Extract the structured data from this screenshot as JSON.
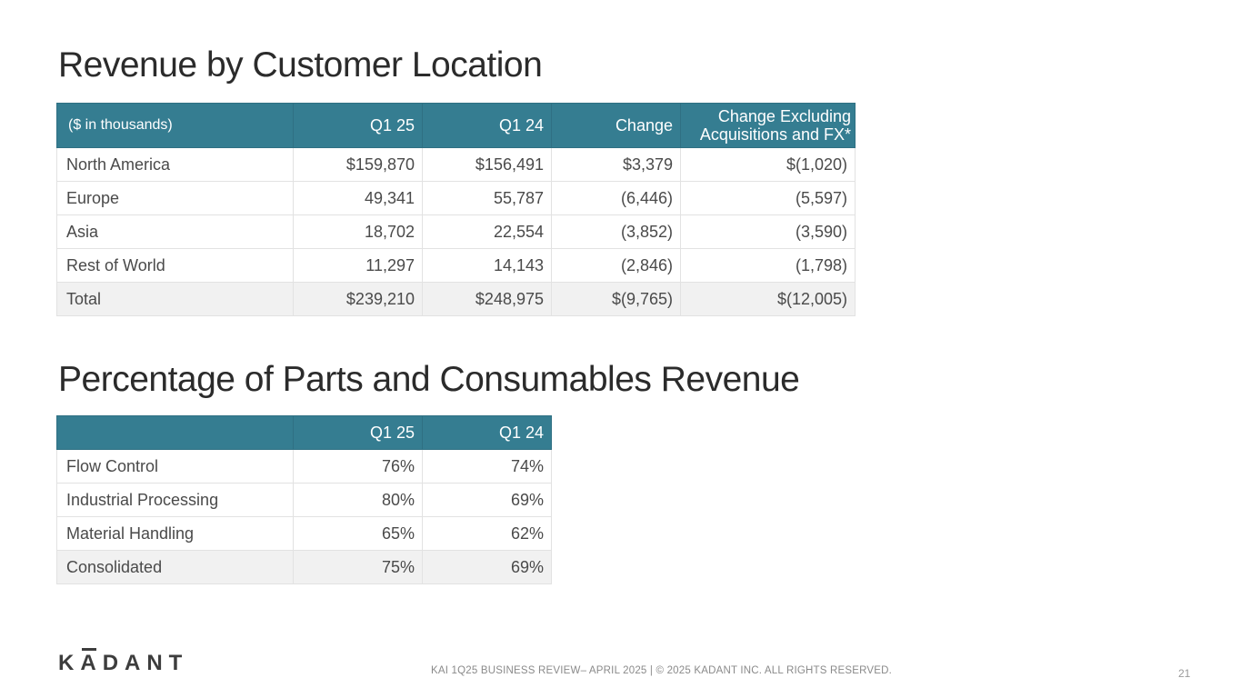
{
  "revenue": {
    "title": "Revenue by Customer Location",
    "headers": [
      "($ in thousands)",
      "Q1 25",
      "Q1 24",
      "Change",
      "Change Excluding",
      "Acquisitions and FX*"
    ],
    "rows": [
      [
        "North America",
        "$159,870",
        "$156,491",
        "$3,379",
        "$(1,020)"
      ],
      [
        "Europe",
        "49,341",
        "55,787",
        "(6,446)",
        "(5,597)"
      ],
      [
        "Asia",
        "18,702",
        "22,554",
        "(3,852)",
        "(3,590)"
      ],
      [
        "Rest of World",
        "11,297",
        "14,143",
        "(2,846)",
        "(1,798)"
      ],
      [
        "Total",
        "$239,210",
        "$248,975",
        "$(9,765)",
        "$(12,005)"
      ]
    ]
  },
  "parts": {
    "title": "Percentage of Parts and Consumables Revenue",
    "headers": [
      "",
      "Q1 25",
      "Q1 24"
    ],
    "rows": [
      [
        "Flow Control",
        "76%",
        "74%"
      ],
      [
        "Industrial Processing",
        "80%",
        "69%"
      ],
      [
        "Material Handling",
        "65%",
        "62%"
      ],
      [
        "Consolidated",
        "75%",
        "69%"
      ]
    ]
  },
  "footer": {
    "logo_a": "K",
    "logo_macron": "A",
    "logo_b": "DANT",
    "text": "KAI 1Q25 BUSINESS REVIEW– APRIL 2025 | © 2025 KADANT INC. ALL RIGHTS RESERVED.",
    "page_number": "21"
  },
  "colors": {
    "header_bg": "#357d91",
    "total_bg": "#f1f1f1"
  }
}
